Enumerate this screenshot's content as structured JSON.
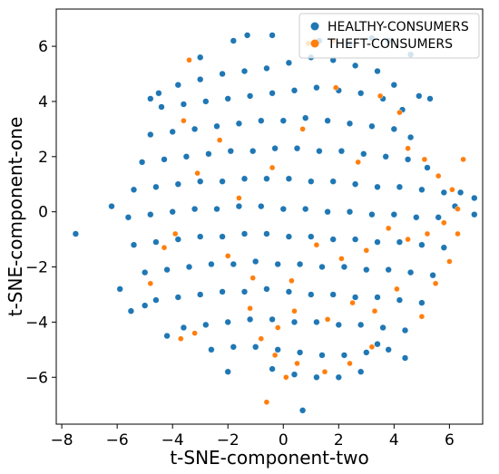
{
  "chart_data": {
    "type": "scatter",
    "xlabel": "t-SNE-component-two",
    "ylabel": "t-SNE-component-one",
    "xlim": [
      -8.2,
      7.2
    ],
    "ylim": [
      -7.7,
      7.35
    ],
    "xticks": [
      -8,
      -6,
      -4,
      -2,
      0,
      2,
      4,
      6
    ],
    "yticks": [
      -6,
      -4,
      -2,
      0,
      2,
      4,
      6
    ],
    "legend_position": "top-right",
    "series": [
      {
        "name": "HEALTHY-CONSUMERS",
        "color": "#1f77b4",
        "points": [
          [
            -3.8,
            4.6
          ],
          [
            -3.0,
            4.8
          ],
          [
            -2.2,
            5.0
          ],
          [
            -1.4,
            5.1
          ],
          [
            -0.6,
            5.2
          ],
          [
            0.2,
            5.4
          ],
          [
            1.0,
            5.6
          ],
          [
            1.8,
            5.5
          ],
          [
            2.6,
            5.3
          ],
          [
            3.4,
            5.1
          ],
          [
            4.0,
            4.6
          ],
          [
            -4.4,
            3.8
          ],
          [
            -3.6,
            3.9
          ],
          [
            -2.8,
            4.0
          ],
          [
            -2.0,
            4.1
          ],
          [
            -1.2,
            4.2
          ],
          [
            -0.4,
            4.3
          ],
          [
            0.4,
            4.4
          ],
          [
            1.2,
            4.5
          ],
          [
            2.0,
            4.4
          ],
          [
            2.8,
            4.3
          ],
          [
            3.6,
            4.1
          ],
          [
            4.3,
            3.7
          ],
          [
            -4.8,
            2.8
          ],
          [
            -4.0,
            2.9
          ],
          [
            -3.2,
            3.0
          ],
          [
            -2.4,
            3.1
          ],
          [
            -1.6,
            3.2
          ],
          [
            -0.8,
            3.3
          ],
          [
            0.0,
            3.3
          ],
          [
            0.8,
            3.4
          ],
          [
            1.6,
            3.3
          ],
          [
            2.4,
            3.2
          ],
          [
            3.2,
            3.1
          ],
          [
            4.0,
            3.0
          ],
          [
            4.6,
            2.7
          ],
          [
            -5.1,
            1.8
          ],
          [
            -4.3,
            1.9
          ],
          [
            -3.5,
            2.0
          ],
          [
            -2.7,
            2.1
          ],
          [
            -1.9,
            2.2
          ],
          [
            -1.1,
            2.2
          ],
          [
            -0.3,
            2.3
          ],
          [
            0.5,
            2.3
          ],
          [
            1.3,
            2.2
          ],
          [
            2.1,
            2.2
          ],
          [
            2.9,
            2.1
          ],
          [
            3.7,
            2.0
          ],
          [
            4.5,
            1.9
          ],
          [
            5.2,
            1.6
          ],
          [
            -5.4,
            0.8
          ],
          [
            -4.6,
            0.9
          ],
          [
            -3.8,
            1.0
          ],
          [
            -3.0,
            1.1
          ],
          [
            -2.2,
            1.1
          ],
          [
            -1.4,
            1.2
          ],
          [
            -0.6,
            1.2
          ],
          [
            0.2,
            1.2
          ],
          [
            1.0,
            1.1
          ],
          [
            1.8,
            1.1
          ],
          [
            2.6,
            1.0
          ],
          [
            3.4,
            0.9
          ],
          [
            4.2,
            0.9
          ],
          [
            5.0,
            0.8
          ],
          [
            5.8,
            0.7
          ],
          [
            -5.6,
            -0.2
          ],
          [
            -4.8,
            -0.1
          ],
          [
            -4.0,
            0.0
          ],
          [
            -3.2,
            0.1
          ],
          [
            -2.4,
            0.1
          ],
          [
            -1.6,
            0.2
          ],
          [
            -0.8,
            0.2
          ],
          [
            0.0,
            0.1
          ],
          [
            0.8,
            0.1
          ],
          [
            1.6,
            0.0
          ],
          [
            2.4,
            0.0
          ],
          [
            3.2,
            -0.1
          ],
          [
            4.0,
            -0.1
          ],
          [
            4.8,
            -0.2
          ],
          [
            5.6,
            -0.2
          ],
          [
            6.2,
            0.2
          ],
          [
            -5.4,
            -1.2
          ],
          [
            -4.6,
            -1.1
          ],
          [
            -3.8,
            -1.0
          ],
          [
            -3.0,
            -0.9
          ],
          [
            -2.2,
            -0.9
          ],
          [
            -1.4,
            -0.8
          ],
          [
            -0.6,
            -0.8
          ],
          [
            0.2,
            -0.9
          ],
          [
            1.0,
            -0.9
          ],
          [
            1.8,
            -1.0
          ],
          [
            2.6,
            -1.0
          ],
          [
            3.4,
            -1.1
          ],
          [
            4.2,
            -1.1
          ],
          [
            5.0,
            -1.2
          ],
          [
            5.8,
            -1.3
          ],
          [
            -5.0,
            -2.2
          ],
          [
            -4.2,
            -2.1
          ],
          [
            -3.4,
            -2.0
          ],
          [
            -2.6,
            -1.9
          ],
          [
            -1.8,
            -1.9
          ],
          [
            -1.0,
            -1.8
          ],
          [
            -0.2,
            -1.9
          ],
          [
            0.6,
            -1.9
          ],
          [
            1.4,
            -2.0
          ],
          [
            2.2,
            -2.0
          ],
          [
            3.0,
            -2.1
          ],
          [
            3.8,
            -2.1
          ],
          [
            4.6,
            -2.2
          ],
          [
            5.4,
            -2.3
          ],
          [
            -4.6,
            -3.2
          ],
          [
            -3.8,
            -3.1
          ],
          [
            -3.0,
            -3.0
          ],
          [
            -2.2,
            -2.9
          ],
          [
            -1.4,
            -2.9
          ],
          [
            -0.6,
            -2.8
          ],
          [
            0.2,
            -2.9
          ],
          [
            1.0,
            -3.0
          ],
          [
            1.8,
            -3.0
          ],
          [
            2.6,
            -3.1
          ],
          [
            3.4,
            -3.1
          ],
          [
            4.2,
            -3.2
          ],
          [
            5.0,
            -3.3
          ],
          [
            -3.6,
            -4.2
          ],
          [
            -2.8,
            -4.1
          ],
          [
            -2.0,
            -4.0
          ],
          [
            -1.2,
            -3.9
          ],
          [
            -0.4,
            -3.9
          ],
          [
            0.4,
            -4.0
          ],
          [
            1.2,
            -4.0
          ],
          [
            2.0,
            -4.1
          ],
          [
            2.8,
            -4.1
          ],
          [
            3.6,
            -4.2
          ],
          [
            4.4,
            -4.3
          ],
          [
            -2.6,
            -5.0
          ],
          [
            -1.8,
            -4.9
          ],
          [
            -1.0,
            -4.9
          ],
          [
            -0.2,
            -5.0
          ],
          [
            0.6,
            -5.1
          ],
          [
            1.4,
            -5.2
          ],
          [
            2.2,
            -5.2
          ],
          [
            3.0,
            -5.1
          ],
          [
            3.8,
            -5.0
          ],
          [
            -0.4,
            -5.7
          ],
          [
            0.4,
            -5.9
          ],
          [
            1.2,
            -6.0
          ],
          [
            2.0,
            -6.0
          ],
          [
            2.8,
            -5.8
          ],
          [
            -7.5,
            -0.8
          ],
          [
            -6.2,
            0.2
          ],
          [
            -5.9,
            -2.8
          ],
          [
            -5.5,
            -3.6
          ],
          [
            -5.0,
            -3.4
          ],
          [
            -4.8,
            4.1
          ],
          [
            -4.5,
            4.3
          ],
          [
            -4.2,
            -4.5
          ],
          [
            -3.0,
            5.6
          ],
          [
            -2.0,
            -5.8
          ],
          [
            -1.8,
            6.2
          ],
          [
            -1.3,
            6.4
          ],
          [
            -0.4,
            6.4
          ],
          [
            0.7,
            -7.2
          ],
          [
            1.3,
            6.2
          ],
          [
            2.4,
            6.1
          ],
          [
            3.2,
            6.3
          ],
          [
            3.8,
            6.2
          ],
          [
            4.6,
            5.7
          ],
          [
            4.9,
            4.2
          ],
          [
            5.3,
            4.1
          ],
          [
            6.4,
            0.7
          ],
          [
            6.9,
            0.5
          ],
          [
            6.9,
            -0.1
          ],
          [
            4.4,
            -5.3
          ],
          [
            3.4,
            -4.8
          ]
        ]
      },
      {
        "name": "THEFT-CONSUMERS",
        "color": "#ff7f0e",
        "points": [
          [
            -3.4,
            5.5
          ],
          [
            0.9,
            6.1
          ],
          [
            1.8,
            6.2
          ],
          [
            -3.6,
            3.3
          ],
          [
            -2.3,
            2.6
          ],
          [
            -3.1,
            1.4
          ],
          [
            -1.6,
            0.5
          ],
          [
            -0.4,
            1.6
          ],
          [
            0.7,
            3.0
          ],
          [
            1.9,
            4.5
          ],
          [
            2.7,
            1.8
          ],
          [
            3.5,
            4.2
          ],
          [
            4.2,
            3.6
          ],
          [
            4.5,
            2.3
          ],
          [
            5.1,
            1.9
          ],
          [
            5.6,
            1.3
          ],
          [
            6.1,
            0.8
          ],
          [
            6.5,
            1.9
          ],
          [
            6.3,
            0.1
          ],
          [
            5.8,
            -0.4
          ],
          [
            5.2,
            -0.8
          ],
          [
            4.5,
            -1.0
          ],
          [
            3.8,
            -0.6
          ],
          [
            3.0,
            -1.4
          ],
          [
            2.1,
            -1.7
          ],
          [
            1.2,
            -1.2
          ],
          [
            0.3,
            -2.5
          ],
          [
            -1.1,
            -2.4
          ],
          [
            -2.0,
            -1.6
          ],
          [
            -3.9,
            -0.8
          ],
          [
            -4.3,
            -1.3
          ],
          [
            -4.8,
            -2.6
          ],
          [
            -3.2,
            -4.4
          ],
          [
            -3.7,
            -4.6
          ],
          [
            -1.2,
            -3.5
          ],
          [
            -0.8,
            -4.6
          ],
          [
            -0.2,
            -4.2
          ],
          [
            0.4,
            -3.6
          ],
          [
            1.6,
            -3.9
          ],
          [
            2.5,
            -3.3
          ],
          [
            3.3,
            -3.6
          ],
          [
            4.1,
            -2.8
          ],
          [
            -0.3,
            -5.2
          ],
          [
            0.5,
            -5.5
          ],
          [
            1.5,
            -5.8
          ],
          [
            2.4,
            -5.5
          ],
          [
            3.2,
            -4.9
          ],
          [
            -0.6,
            -6.9
          ],
          [
            0.1,
            -6.0
          ],
          [
            5.0,
            -3.8
          ],
          [
            5.5,
            -2.6
          ],
          [
            6.0,
            -1.8
          ],
          [
            6.3,
            -0.8
          ]
        ]
      }
    ]
  }
}
